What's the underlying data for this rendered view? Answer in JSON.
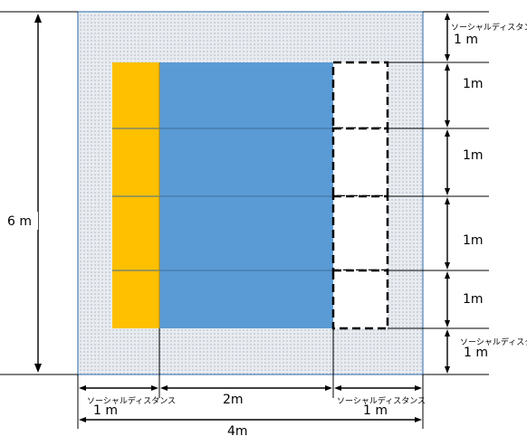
{
  "labels": {
    "height_total": "6 m",
    "width_total": "4m",
    "table_width": "2m",
    "social_distance": "ソーシャルディスタンス",
    "one_m_spaced": "1 m",
    "one_m": "1m"
  },
  "colors": {
    "floor": "#d8dee6",
    "floor_dot": "#8c96a2",
    "table": "#5b9bd5",
    "seat": "#ffc000",
    "empty_dashed": "#000000"
  }
}
